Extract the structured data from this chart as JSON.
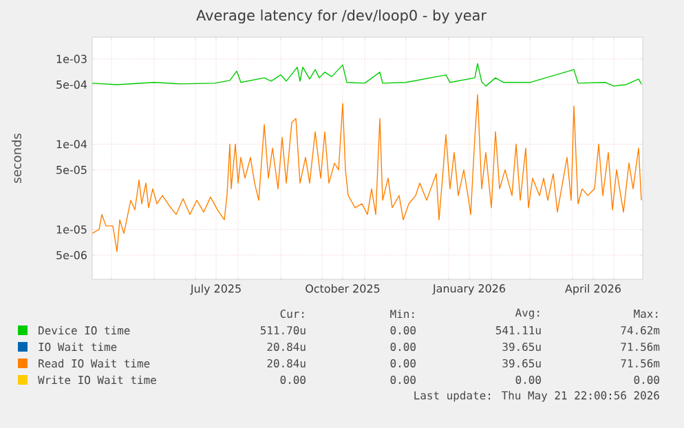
{
  "chart_data": {
    "type": "line",
    "title": "Average latency for /dev/loop0 - by year",
    "ylabel": "seconds",
    "log": "y",
    "grid": true,
    "legend": "bottom",
    "xlim": [
      "2025-04-17",
      "2026-05-22"
    ],
    "xticks": [
      {
        "value": "2025-05-01",
        "label": null
      },
      {
        "value": "2025-06-01",
        "label": null
      },
      {
        "value": "2025-07-01",
        "label": null
      },
      {
        "value": "2025-07-16",
        "label": "July 2025"
      },
      {
        "value": "2025-08-01",
        "label": null
      },
      {
        "value": "2025-09-01",
        "label": null
      },
      {
        "value": "2025-10-01",
        "label": null
      },
      {
        "value": "2025-10-16",
        "label": "October 2025"
      },
      {
        "value": "2025-11-01",
        "label": null
      },
      {
        "value": "2025-12-01",
        "label": null
      },
      {
        "value": "2026-01-01",
        "label": null
      },
      {
        "value": "2026-01-16",
        "label": "January 2026"
      },
      {
        "value": "2026-02-01",
        "label": null
      },
      {
        "value": "2026-03-01",
        "label": null
      },
      {
        "value": "2026-04-01",
        "label": null
      },
      {
        "value": "2026-04-16",
        "label": "April 2026"
      },
      {
        "value": "2026-05-01",
        "label": null
      }
    ],
    "ylim": [
      2.6e-06,
      0.0018
    ],
    "yticks": [
      {
        "value": 5e-06,
        "label": "5e-06"
      },
      {
        "value": 1e-05,
        "label": "1e-05"
      },
      {
        "value": 5e-05,
        "label": "5e-05"
      },
      {
        "value": 0.0001,
        "label": "1e-04"
      },
      {
        "value": 0.0005,
        "label": "5e-04"
      },
      {
        "value": 0.001,
        "label": "1e-03"
      }
    ],
    "series": [
      {
        "name": "Device IO time",
        "color": "#00cc00",
        "x": [
          "2025-04-17",
          "2025-05-05",
          "2025-06-01",
          "2025-06-20",
          "2025-07-15",
          "2025-07-26",
          "2025-07-31",
          "2025-08-03",
          "2025-08-20",
          "2025-08-25",
          "2025-09-01",
          "2025-09-05",
          "2025-09-13",
          "2025-09-15",
          "2025-09-17",
          "2025-09-22",
          "2025-09-26",
          "2025-09-29",
          "2025-10-03",
          "2025-10-08",
          "2025-10-16",
          "2025-10-19",
          "2025-11-01",
          "2025-11-12",
          "2025-11-14",
          "2025-12-01",
          "2025-12-30",
          "2026-01-02",
          "2026-01-20",
          "2026-01-22",
          "2026-01-25",
          "2026-01-28",
          "2026-02-04",
          "2026-02-10",
          "2026-03-01",
          "2026-04-02",
          "2026-04-05",
          "2026-04-25",
          "2026-05-01",
          "2026-05-10",
          "2026-05-19",
          "2026-05-21"
        ],
        "values": [
          0.00052,
          0.0005,
          0.00053,
          0.00051,
          0.00052,
          0.00056,
          0.00072,
          0.00053,
          0.0006,
          0.00055,
          0.00065,
          0.00055,
          0.0008,
          0.00055,
          0.0008,
          0.00058,
          0.00075,
          0.0006,
          0.0007,
          0.00062,
          0.00085,
          0.00053,
          0.00052,
          0.0007,
          0.00052,
          0.00053,
          0.00065,
          0.00053,
          0.0006,
          0.00088,
          0.00054,
          0.00048,
          0.0006,
          0.00053,
          0.00053,
          0.00075,
          0.00052,
          0.00053,
          0.00048,
          0.0005,
          0.00058,
          0.00051
        ]
      },
      {
        "name": "IO Wait time",
        "color": "#0066b3"
      },
      {
        "name": "Read IO Wait time",
        "color": "#ff8000",
        "x": [
          "2025-04-17",
          "2025-04-22",
          "2025-04-24",
          "2025-04-27",
          "2025-05-02",
          "2025-05-05",
          "2025-05-07",
          "2025-05-10",
          "2025-05-15",
          "2025-05-18",
          "2025-05-21",
          "2025-05-23",
          "2025-05-26",
          "2025-05-28",
          "2025-05-31",
          "2025-06-03",
          "2025-06-07",
          "2025-06-12",
          "2025-06-17",
          "2025-06-22",
          "2025-06-27",
          "2025-07-02",
          "2025-07-07",
          "2025-07-12",
          "2025-07-17",
          "2025-07-22",
          "2025-07-24",
          "2025-07-26",
          "2025-07-27",
          "2025-07-30",
          "2025-08-01",
          "2025-08-03",
          "2025-08-06",
          "2025-08-10",
          "2025-08-13",
          "2025-08-16",
          "2025-08-20",
          "2025-08-23",
          "2025-08-26",
          "2025-08-30",
          "2025-09-02",
          "2025-09-05",
          "2025-09-09",
          "2025-09-12",
          "2025-09-15",
          "2025-09-19",
          "2025-09-22",
          "2025-09-26",
          "2025-09-30",
          "2025-10-03",
          "2025-10-06",
          "2025-10-10",
          "2025-10-13",
          "2025-10-16",
          "2025-10-18",
          "2025-10-20",
          "2025-10-25",
          "2025-10-30",
          "2025-11-03",
          "2025-11-06",
          "2025-11-09",
          "2025-11-12",
          "2025-11-14",
          "2025-11-18",
          "2025-11-21",
          "2025-11-26",
          "2025-11-29",
          "2025-12-03",
          "2025-12-08",
          "2025-12-11",
          "2025-12-16",
          "2025-12-19",
          "2025-12-23",
          "2025-12-25",
          "2025-12-28",
          "2025-12-30",
          "2026-01-02",
          "2026-01-05",
          "2026-01-08",
          "2026-01-12",
          "2026-01-15",
          "2026-01-17",
          "2026-01-20",
          "2026-01-22",
          "2026-01-25",
          "2026-01-28",
          "2026-02-01",
          "2026-02-04",
          "2026-02-07",
          "2026-02-11",
          "2026-02-16",
          "2026-02-19",
          "2026-02-22",
          "2026-02-26",
          "2026-02-28",
          "2026-03-03",
          "2026-03-08",
          "2026-03-11",
          "2026-03-14",
          "2026-03-18",
          "2026-03-21",
          "2026-03-24",
          "2026-03-28",
          "2026-03-31",
          "2026-04-02",
          "2026-04-05",
          "2026-04-08",
          "2026-04-12",
          "2026-04-17",
          "2026-04-20",
          "2026-04-23",
          "2026-04-27",
          "2026-04-30",
          "2026-05-03",
          "2026-05-08",
          "2026-05-12",
          "2026-05-15",
          "2026-05-19",
          "2026-05-21"
        ],
        "values": [
          9e-06,
          1e-05,
          1.5e-05,
          1.1e-05,
          1.1e-05,
          5.5e-06,
          1.3e-05,
          9e-06,
          2.2e-05,
          1.7e-05,
          3.8e-05,
          2e-05,
          3.5e-05,
          1.8e-05,
          3e-05,
          2e-05,
          2.5e-05,
          1.9e-05,
          1.5e-05,
          2.3e-05,
          1.5e-05,
          2.2e-05,
          1.6e-05,
          2.4e-05,
          1.7e-05,
          1.3e-05,
          2.6e-05,
          0.0001,
          3e-05,
          0.0001,
          3.5e-05,
          7e-05,
          4e-05,
          7e-05,
          3.5e-05,
          2.2e-05,
          0.00017,
          4e-05,
          9e-05,
          3e-05,
          0.00012,
          3.5e-05,
          0.00018,
          0.0002,
          3.5e-05,
          7e-05,
          3.5e-05,
          0.00014,
          4e-05,
          0.00014,
          3.5e-05,
          6e-05,
          5e-05,
          0.0003,
          5e-05,
          2.5e-05,
          1.8e-05,
          2e-05,
          1.5e-05,
          3e-05,
          1.5e-05,
          0.0002,
          2.2e-05,
          4e-05,
          1.8e-05,
          2.5e-05,
          1.3e-05,
          2e-05,
          2.5e-05,
          3.5e-05,
          2.2e-05,
          3e-05,
          4.5e-05,
          1.3e-05,
          5e-05,
          0.00013,
          3e-05,
          8e-05,
          2.5e-05,
          5e-05,
          2.5e-05,
          1.5e-05,
          0.00012,
          0.00038,
          3e-05,
          8e-05,
          1.8e-05,
          0.00014,
          3e-05,
          5e-05,
          2.5e-05,
          0.0001,
          2.2e-05,
          9e-05,
          1.8e-05,
          4e-05,
          2.5e-05,
          4e-05,
          2.2e-05,
          4.5e-05,
          1.6e-05,
          3e-05,
          7e-05,
          2.2e-05,
          0.00028,
          2e-05,
          3e-05,
          2.5e-05,
          3e-05,
          0.0001,
          2.5e-05,
          8e-05,
          1.7e-05,
          5e-05,
          1.6e-05,
          6e-05,
          3e-05,
          9e-05,
          2.2e-05
        ]
      },
      {
        "name": "Write IO Wait time",
        "color": "#ffcc00"
      }
    ],
    "annotations": [
      "Cur:",
      "Min:",
      "Avg:",
      "Max:",
      "511.70u",
      "0.00",
      "541.11u",
      "74.62m",
      "20.84u",
      "0.00",
      "39.65u",
      "71.56m",
      "20.84u",
      "0.00",
      "39.65u",
      "71.56m",
      "0.00",
      "0.00",
      "0.00",
      "0.00",
      "Last update: Thu May 21 22:00:56 2026"
    ]
  }
}
